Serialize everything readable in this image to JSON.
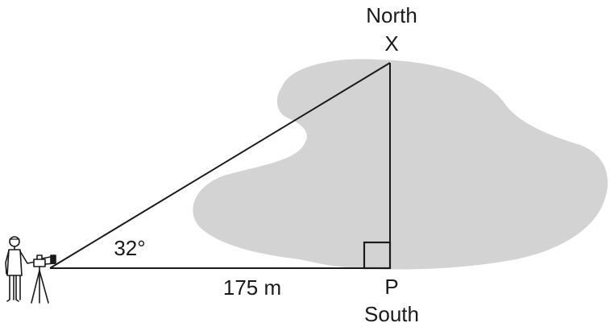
{
  "labels": {
    "north": "North",
    "x_point": "X",
    "angle": "32°",
    "distance": "175 m",
    "p_point": "P",
    "south": "South"
  },
  "colors": {
    "lake": "#d3d3d3",
    "line": "#1a1a1a",
    "background": "#ffffff"
  },
  "icons": {
    "surveyor": "person-with-theodolite-icon"
  }
}
